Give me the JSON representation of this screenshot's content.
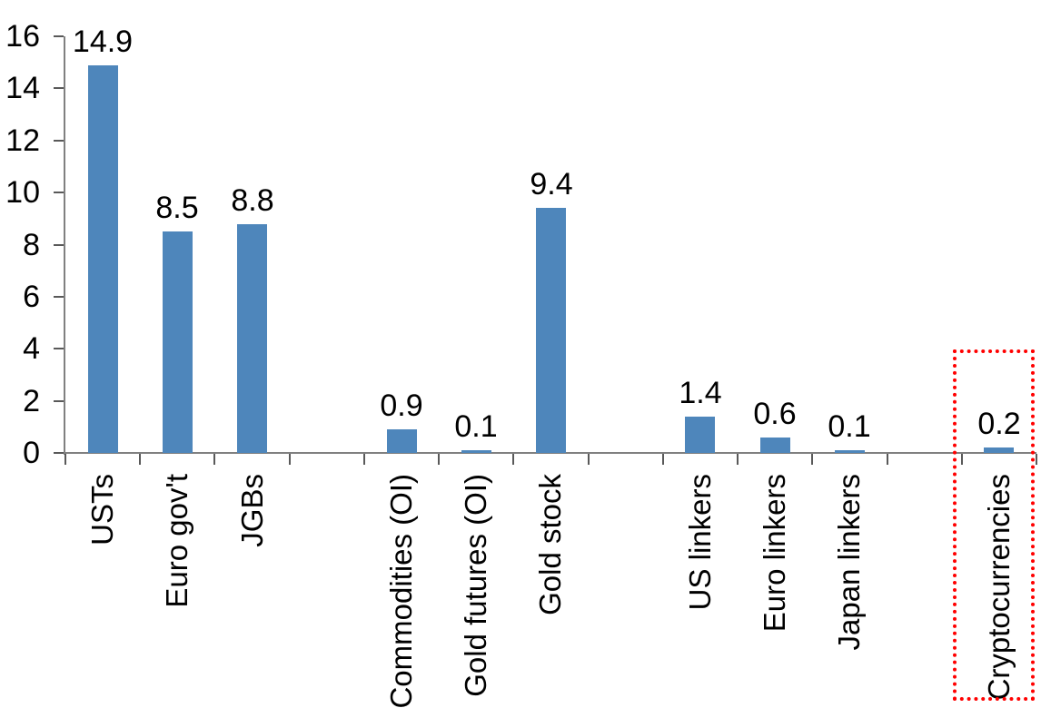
{
  "chart_data": {
    "type": "bar",
    "title": "",
    "xlabel": "",
    "ylabel": "",
    "categories": [
      "USTs",
      "Euro gov't",
      "JGBs",
      "",
      "Commodities (OI)",
      "Gold futures (OI)",
      "Gold stock",
      "",
      "US linkers",
      "Euro linkers",
      "Japan linkers",
      "",
      "Cryptocurrencies"
    ],
    "values": [
      14.9,
      8.5,
      8.8,
      null,
      0.9,
      0.1,
      9.4,
      null,
      1.4,
      0.6,
      0.1,
      null,
      0.2
    ],
    "data_labels": [
      "14.9",
      "8.5",
      "8.8",
      "",
      "0.9",
      "0.1",
      "9.4",
      "",
      "1.4",
      "0.6",
      "0.1",
      "",
      "0.2"
    ],
    "y_axis": {
      "min": 0,
      "max": 16,
      "tick_step": 2,
      "tick_labels": [
        "16",
        "14",
        "12",
        "10",
        "8",
        "6",
        "4",
        "2",
        "0"
      ]
    },
    "grid": false,
    "legend": "none",
    "bar_color": "#4E86BB",
    "axis_line_color": "#808080",
    "tick_color": "#595959",
    "text_color": "#000000",
    "highlight": {
      "category": "Cryptocurrencies",
      "style": "red-dotted-box",
      "color": "#FF0000"
    }
  }
}
